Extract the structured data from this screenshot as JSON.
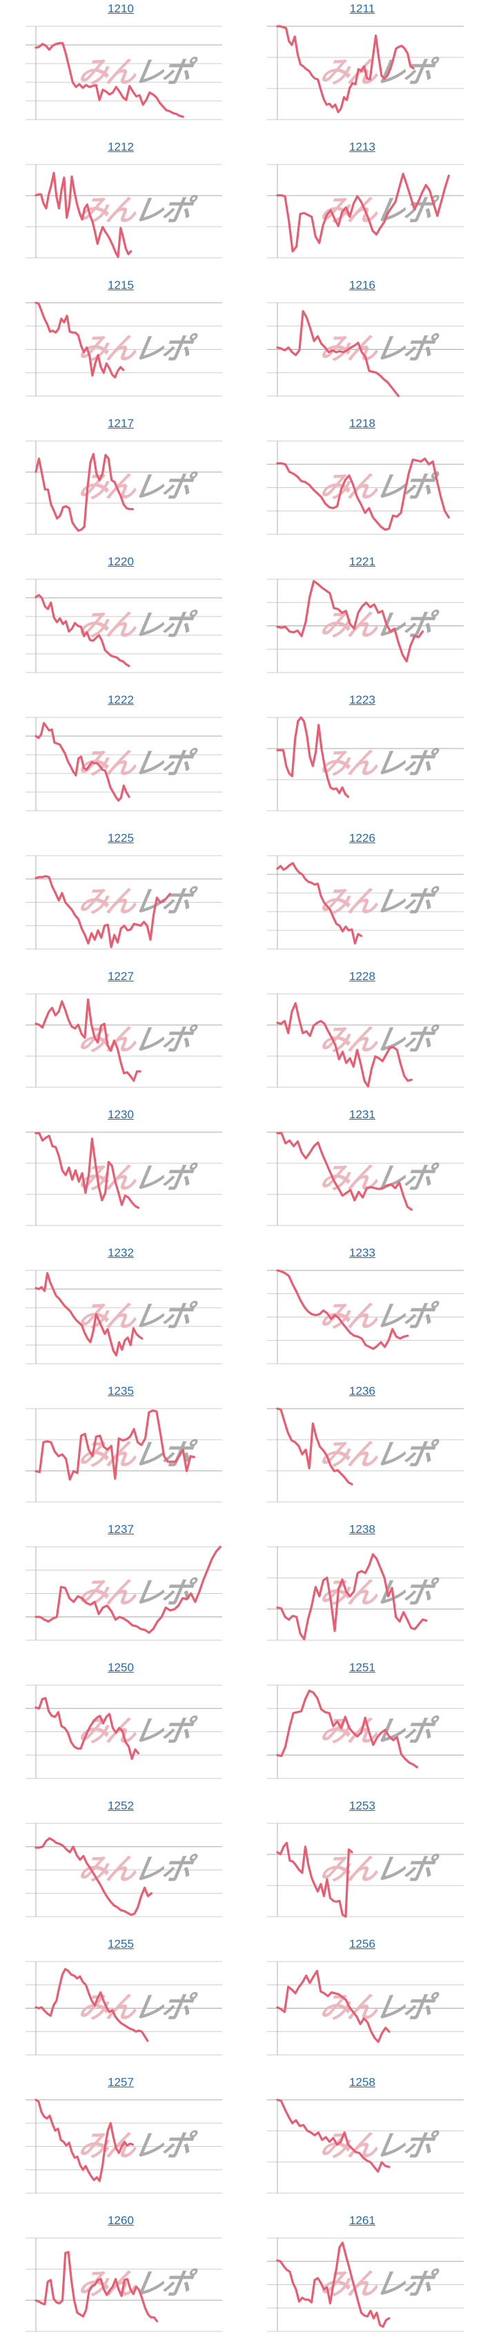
{
  "page": {
    "background": "#ffffff"
  },
  "style": {
    "line_color": "#e85d72",
    "grid_color": "#cccccc",
    "baseline_color": "#a8a8a8",
    "axis_color": "#b0b0b0",
    "link_color": "#1b6cb8",
    "watermark_pink": "#edb0b8",
    "watermark_gray": "#a3a3a3"
  },
  "watermark": {
    "text_pink": "みん",
    "text_gray": "レポ"
  },
  "chart_data": [
    {
      "type": "line",
      "id": "1210",
      "gridlines": 6,
      "end": 0.79,
      "ys": [
        23,
        22,
        19,
        21,
        25,
        21,
        19,
        18,
        18,
        30,
        45,
        60,
        65,
        62,
        66,
        63,
        65,
        64,
        63,
        79,
        68,
        70,
        73,
        71,
        65,
        70,
        76,
        79,
        64,
        70,
        75,
        74,
        84,
        79,
        71,
        73,
        76,
        82,
        86,
        90,
        91,
        93,
        94,
        96,
        97
      ]
    },
    {
      "type": "line",
      "id": "1211",
      "gridlines": 4,
      "end": 0.73,
      "ys": [
        0,
        0,
        1,
        2,
        16,
        20,
        11,
        30,
        41,
        43,
        46,
        48,
        53,
        56,
        57,
        68,
        78,
        84,
        83,
        87,
        84,
        92,
        88,
        76,
        79,
        66,
        61,
        62,
        46,
        48,
        43,
        56,
        57,
        33,
        10,
        33,
        53,
        56,
        53,
        46,
        36,
        24,
        22,
        21,
        24,
        29,
        43,
        45
      ]
    },
    {
      "type": "line",
      "id": "1212",
      "gridlines": 4,
      "end": 0.51,
      "ys": [
        33,
        32,
        32,
        42,
        47,
        32,
        22,
        9,
        34,
        47,
        27,
        14,
        57,
        44,
        13,
        29,
        42,
        52,
        59,
        47,
        43,
        54,
        61,
        72,
        85,
        75,
        67,
        72,
        76,
        81,
        87,
        94,
        99,
        68,
        78,
        90,
        96,
        93
      ]
    },
    {
      "type": "line",
      "id": "1213",
      "gridlines": 4,
      "end": 0.92,
      "ys": [
        33,
        33,
        34,
        60,
        93,
        88,
        53,
        52,
        54,
        56,
        77,
        84,
        65,
        54,
        49,
        58,
        66,
        51,
        46,
        56,
        42,
        34,
        40,
        49,
        59,
        71,
        75,
        68,
        62,
        52,
        46,
        40,
        25,
        10,
        22,
        35,
        48,
        40,
        30,
        22,
        28,
        42,
        55,
        40,
        25,
        12
      ]
    },
    {
      "type": "line",
      "id": "1215",
      "gridlines": 5,
      "end": 0.47,
      "ys": [
        0,
        1,
        9,
        17,
        23,
        31,
        30,
        32,
        28,
        17,
        21,
        14,
        31,
        32,
        32,
        35,
        46,
        53,
        48,
        57,
        78,
        65,
        56,
        69,
        75,
        65,
        70,
        77,
        80,
        73,
        69,
        72
      ]
    },
    {
      "type": "line",
      "id": "1216",
      "gridlines": 5,
      "end": 0.65,
      "ys": [
        48,
        49,
        51,
        48,
        53,
        56,
        51,
        9,
        16,
        28,
        41,
        36,
        44,
        48,
        53,
        51,
        53,
        52,
        53,
        51,
        48,
        46,
        43,
        53,
        58,
        73,
        74,
        75,
        78,
        82,
        85,
        90,
        95,
        100
      ]
    },
    {
      "type": "line",
      "id": "1217",
      "gridlines": 4,
      "end": 0.52,
      "ys": [
        33,
        19,
        35,
        52,
        52,
        68,
        75,
        83,
        80,
        71,
        70,
        72,
        87,
        92,
        96,
        95,
        92,
        52,
        23,
        14,
        35,
        42,
        35,
        15,
        19,
        42,
        44,
        52,
        59,
        68,
        72,
        73,
        73
      ]
    },
    {
      "type": "line",
      "id": "1218",
      "gridlines": 5,
      "end": 0.92,
      "ys": [
        24,
        24,
        25,
        33,
        35,
        38,
        43,
        44,
        47,
        52,
        56,
        60,
        67,
        71,
        72,
        70,
        52,
        42,
        37,
        47,
        60,
        68,
        77,
        72,
        82,
        87,
        92,
        95,
        94,
        80,
        81,
        77,
        54,
        34,
        20,
        21,
        22,
        19,
        25,
        22,
        42,
        60,
        75,
        82
      ]
    },
    {
      "type": "line",
      "id": "1220",
      "gridlines": 6,
      "end": 0.5,
      "ys": [
        19,
        17,
        20,
        29,
        32,
        25,
        41,
        46,
        42,
        48,
        45,
        56,
        53,
        47,
        50,
        51,
        61,
        57,
        65,
        66,
        63,
        60,
        66,
        76,
        79,
        82,
        83,
        84,
        87,
        88,
        91,
        93
      ]
    },
    {
      "type": "line",
      "id": "1221",
      "gridlines": 5,
      "end": 0.78,
      "ys": [
        51,
        52,
        51,
        56,
        57,
        55,
        61,
        46,
        19,
        2,
        5,
        9,
        12,
        15,
        31,
        32,
        36,
        34,
        48,
        53,
        36,
        29,
        25,
        30,
        27,
        36,
        34,
        48,
        56,
        53,
        68,
        81,
        88,
        71,
        61,
        62,
        56
      ]
    },
    {
      "type": "line",
      "id": "1222",
      "gridlines": 6,
      "end": 0.5,
      "ys": [
        20,
        22,
        18,
        6,
        10,
        14,
        13,
        27,
        28,
        29,
        34,
        39,
        47,
        52,
        58,
        62,
        44,
        42,
        54,
        56,
        52,
        48,
        49,
        49,
        52,
        56,
        57,
        65,
        75,
        80,
        85,
        89,
        86,
        73,
        80,
        85
      ]
    },
    {
      "type": "line",
      "id": "1223",
      "gridlines": 4,
      "end": 0.38,
      "ys": [
        35,
        35,
        35,
        52,
        60,
        63,
        23,
        4,
        0,
        4,
        19,
        42,
        52,
        37,
        8,
        34,
        52,
        65,
        75,
        77,
        76,
        81,
        75,
        82,
        85
      ]
    },
    {
      "type": "line",
      "id": "1225",
      "gridlines": 5,
      "end": 0.72,
      "ys": [
        24,
        23,
        23,
        22,
        23,
        33,
        40,
        48,
        40,
        50,
        54,
        58,
        64,
        68,
        78,
        85,
        94,
        83,
        90,
        80,
        88,
        75,
        74,
        98,
        85,
        93,
        78,
        75,
        80,
        79,
        73,
        74,
        75,
        71,
        75,
        90,
        63,
        45,
        50,
        49,
        45,
        41
      ]
    },
    {
      "type": "line",
      "id": "1226",
      "gridlines": 6,
      "end": 0.45,
      "ys": [
        14,
        11,
        15,
        13,
        10,
        8,
        14,
        18,
        20,
        25,
        28,
        29,
        31,
        30,
        43,
        50,
        54,
        58,
        66,
        73,
        75,
        81,
        76,
        80,
        79,
        94,
        84,
        86
      ]
    },
    {
      "type": "line",
      "id": "1227",
      "gridlines": 4,
      "end": 0.56,
      "ys": [
        32,
        33,
        36,
        27,
        19,
        15,
        23,
        19,
        8,
        17,
        28,
        35,
        37,
        33,
        43,
        47,
        6,
        32,
        47,
        52,
        34,
        32,
        55,
        61,
        50,
        58,
        73,
        85,
        84,
        88,
        93,
        83,
        83
      ]
    },
    {
      "type": "line",
      "id": "1228",
      "gridlines": 4,
      "end": 0.72,
      "ys": [
        31,
        32,
        29,
        42,
        19,
        10,
        27,
        42,
        40,
        45,
        34,
        31,
        29,
        32,
        40,
        47,
        55,
        70,
        62,
        74,
        69,
        78,
        60,
        75,
        93,
        99,
        80,
        67,
        69,
        72,
        65,
        58,
        57,
        60,
        75,
        88,
        93,
        92
      ]
    },
    {
      "type": "line",
      "id": "1230",
      "gridlines": 4,
      "end": 0.55,
      "ys": [
        1,
        1,
        9,
        6,
        4,
        15,
        16,
        26,
        41,
        46,
        38,
        51,
        41,
        53,
        44,
        65,
        46,
        7,
        33,
        58,
        73,
        65,
        32,
        36,
        53,
        65,
        78,
        68,
        70,
        75,
        79,
        81
      ]
    },
    {
      "type": "line",
      "id": "1231",
      "gridlines": 4,
      "end": 0.72,
      "ys": [
        1,
        1,
        12,
        9,
        15,
        10,
        22,
        28,
        22,
        15,
        11,
        23,
        33,
        43,
        53,
        60,
        68,
        65,
        62,
        73,
        64,
        70,
        60,
        59,
        60,
        61,
        60,
        57,
        56,
        60,
        54,
        68,
        80,
        83
      ]
    },
    {
      "type": "line",
      "id": "1232",
      "gridlines": 6,
      "end": 0.57,
      "ys": [
        19,
        20,
        18,
        22,
        3,
        13,
        20,
        27,
        30,
        34,
        38,
        41,
        44,
        49,
        53,
        56,
        59,
        67,
        73,
        77,
        65,
        47,
        54,
        61,
        68,
        63,
        75,
        86,
        91,
        77,
        85,
        75,
        72,
        80,
        62,
        68,
        71,
        73
      ]
    },
    {
      "type": "line",
      "id": "1233",
      "gridlines": 5,
      "end": 0.7,
      "ys": [
        0,
        1,
        3,
        6,
        15,
        23,
        32,
        39,
        44,
        47,
        48,
        47,
        43,
        46,
        52,
        48,
        51,
        57,
        62,
        67,
        70,
        71,
        73,
        80,
        82,
        84,
        81,
        77,
        82,
        75,
        63,
        71,
        73,
        71,
        70
      ]
    },
    {
      "type": "line",
      "id": "1235",
      "gridlines": 4,
      "end": 0.85,
      "ys": [
        67,
        68,
        36,
        35,
        36,
        46,
        51,
        49,
        54,
        76,
        67,
        69,
        29,
        27,
        44,
        51,
        30,
        29,
        41,
        44,
        40,
        75,
        32,
        34,
        33,
        30,
        22,
        36,
        39,
        32,
        4,
        2,
        3,
        26,
        51,
        57,
        57,
        57,
        51,
        44,
        67,
        51,
        52
      ]
    },
    {
      "type": "line",
      "id": "1236",
      "gridlines": 4,
      "end": 0.4,
      "ys": [
        0,
        1,
        14,
        26,
        34,
        36,
        40,
        49,
        44,
        64,
        16,
        31,
        41,
        45,
        51,
        61,
        67,
        66,
        70,
        74,
        79,
        81
      ]
    },
    {
      "type": "line",
      "id": "1237",
      "gridlines": 5,
      "end": 0.99,
      "ys": [
        75,
        75,
        78,
        80,
        77,
        75,
        43,
        44,
        55,
        59,
        53,
        55,
        60,
        62,
        59,
        72,
        65,
        63,
        69,
        78,
        75,
        77,
        80,
        84,
        85,
        88,
        89,
        92,
        88,
        80,
        75,
        65,
        68,
        67,
        63,
        55,
        56,
        50,
        59,
        48,
        35,
        24,
        13,
        5,
        0
      ]
    },
    {
      "type": "line",
      "id": "1238",
      "gridlines": 4,
      "end": 0.8,
      "ys": [
        65,
        66,
        75,
        78,
        74,
        75,
        93,
        99,
        78,
        63,
        43,
        53,
        36,
        33,
        58,
        90,
        45,
        35,
        48,
        53,
        48,
        28,
        26,
        28,
        20,
        8,
        13,
        23,
        33,
        53,
        44,
        75,
        80,
        70,
        78,
        87,
        88,
        83,
        78,
        79
      ]
    },
    {
      "type": "line",
      "id": "1250",
      "gridlines": 5,
      "end": 0.55,
      "ys": [
        24,
        25,
        15,
        14,
        28,
        33,
        34,
        29,
        44,
        46,
        51,
        61,
        66,
        68,
        68,
        59,
        51,
        44,
        39,
        35,
        33,
        41,
        34,
        31,
        46,
        51,
        46,
        49,
        61,
        66,
        79,
        69,
        73
      ]
    },
    {
      "type": "line",
      "id": "1251",
      "gridlines": 5,
      "end": 0.75,
      "ys": [
        75,
        76,
        66,
        46,
        30,
        29,
        28,
        15,
        6,
        8,
        14,
        26,
        29,
        30,
        44,
        39,
        46,
        34,
        46,
        51,
        55,
        51,
        35,
        51,
        64,
        56,
        51,
        48,
        55,
        59,
        56,
        74,
        79,
        83,
        85,
        88
      ]
    },
    {
      "type": "line",
      "id": "1252",
      "gridlines": 5,
      "end": 0.62,
      "ys": [
        26,
        26,
        25,
        19,
        16,
        18,
        21,
        22,
        24,
        28,
        31,
        25,
        34,
        39,
        35,
        43,
        48,
        54,
        60,
        66,
        73,
        79,
        84,
        88,
        90,
        93,
        94,
        96,
        98,
        97,
        90,
        78,
        69,
        78,
        75
      ]
    },
    {
      "type": "line",
      "id": "1253",
      "gridlines": 4,
      "end": 0.4,
      "ys": [
        31,
        33,
        25,
        21,
        40,
        41,
        45,
        50,
        53,
        25,
        45,
        58,
        66,
        73,
        65,
        78,
        60,
        80,
        83,
        84,
        83,
        98,
        100,
        28,
        31
      ]
    },
    {
      "type": "line",
      "id": "1255",
      "gridlines": 5,
      "end": 0.6,
      "ys": [
        49,
        50,
        49,
        53,
        56,
        58,
        47,
        42,
        27,
        14,
        8,
        10,
        14,
        15,
        18,
        16,
        22,
        25,
        34,
        42,
        47,
        39,
        33,
        42,
        49,
        54,
        52,
        59,
        63,
        66,
        68,
        70,
        72,
        73,
        75,
        74,
        75,
        80,
        85
      ]
    },
    {
      "type": "line",
      "id": "1256",
      "gridlines": 5,
      "end": 0.6,
      "ys": [
        49,
        51,
        54,
        27,
        30,
        34,
        27,
        22,
        15,
        23,
        16,
        10,
        32,
        34,
        37,
        33,
        34,
        35,
        38,
        41,
        49,
        54,
        59,
        67,
        61,
        65,
        75,
        82,
        86,
        77,
        71,
        75
      ]
    },
    {
      "type": "line",
      "id": "1257",
      "gridlines": 5,
      "end": 0.52,
      "ys": [
        0,
        2,
        13,
        18,
        20,
        17,
        26,
        33,
        31,
        43,
        45,
        49,
        46,
        56,
        62,
        61,
        70,
        75,
        71,
        77,
        82,
        86,
        83,
        87,
        72,
        50,
        33,
        25,
        40,
        52,
        57,
        50,
        45,
        49,
        47,
        48
      ]
    },
    {
      "type": "line",
      "id": "1258",
      "gridlines": 4,
      "end": 0.6,
      "ys": [
        0,
        1,
        10,
        18,
        25,
        22,
        28,
        27,
        33,
        35,
        38,
        35,
        43,
        40,
        45,
        41,
        48,
        45,
        35,
        48,
        52,
        56,
        57,
        62,
        65,
        67,
        72,
        77,
        67,
        71,
        72
      ]
    },
    {
      "type": "line",
      "id": "1260",
      "gridlines": 4,
      "end": 0.65,
      "ys": [
        67,
        68,
        70,
        71,
        47,
        45,
        65,
        69,
        70,
        67,
        16,
        15,
        45,
        67,
        80,
        82,
        84,
        77,
        57,
        52,
        50,
        45,
        44,
        55,
        61,
        56,
        52,
        44,
        55,
        62,
        45,
        44,
        55,
        60,
        52,
        56,
        65,
        75,
        82,
        85,
        85,
        89
      ]
    },
    {
      "type": "line",
      "id": "1261",
      "gridlines": 5,
      "end": 0.6,
      "ys": [
        24,
        25,
        30,
        34,
        36,
        48,
        55,
        68,
        64,
        66,
        66,
        69,
        45,
        43,
        48,
        55,
        53,
        70,
        50,
        33,
        10,
        5,
        18,
        30,
        43,
        55,
        68,
        80,
        83,
        84,
        78,
        86,
        80,
        93,
        95,
        88,
        86
      ]
    }
  ],
  "chart_meta": {
    "note": "ys are normalized vertical positions (0=plot top, 100=plot bottom); no axis tick labels are visible in the source image",
    "x_axis_labels": "none",
    "y_axis_labels": "none"
  }
}
